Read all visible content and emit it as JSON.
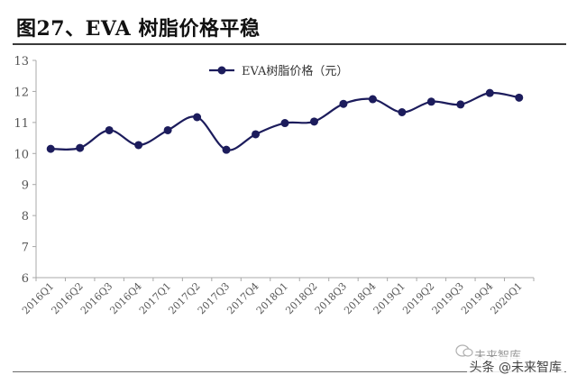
{
  "figure": {
    "title": "图27、EVA 树脂价格平稳"
  },
  "watermark": {
    "text": "头条 @未来智库",
    "faint_text": "未来智库"
  },
  "colors": {
    "series": "#1c1c5c",
    "axis": "#a8a8a8",
    "text": "#555555"
  },
  "chart_data": {
    "type": "line",
    "title": "",
    "xlabel": "",
    "ylabel": "",
    "categories": [
      "2016Q1",
      "2016Q2",
      "2016Q3",
      "2016Q4",
      "2017Q1",
      "2017Q2",
      "2017Q3",
      "2017Q4",
      "2018Q1",
      "2018Q2",
      "2018Q3",
      "2018Q4",
      "2019Q1",
      "2019Q2",
      "2019Q3",
      "2019Q4",
      "2020Q1"
    ],
    "series": [
      {
        "name": "EVA树脂价格（元）",
        "values": [
          10.15,
          10.18,
          10.75,
          10.27,
          10.75,
          11.17,
          10.12,
          10.62,
          10.98,
          11.03,
          11.6,
          11.75,
          11.33,
          11.67,
          11.58,
          11.95,
          11.8
        ]
      }
    ],
    "ylim": [
      6,
      13
    ],
    "yticks": [
      6,
      7,
      8,
      9,
      10,
      11,
      12,
      13
    ],
    "grid": false,
    "legend_position": "top"
  }
}
